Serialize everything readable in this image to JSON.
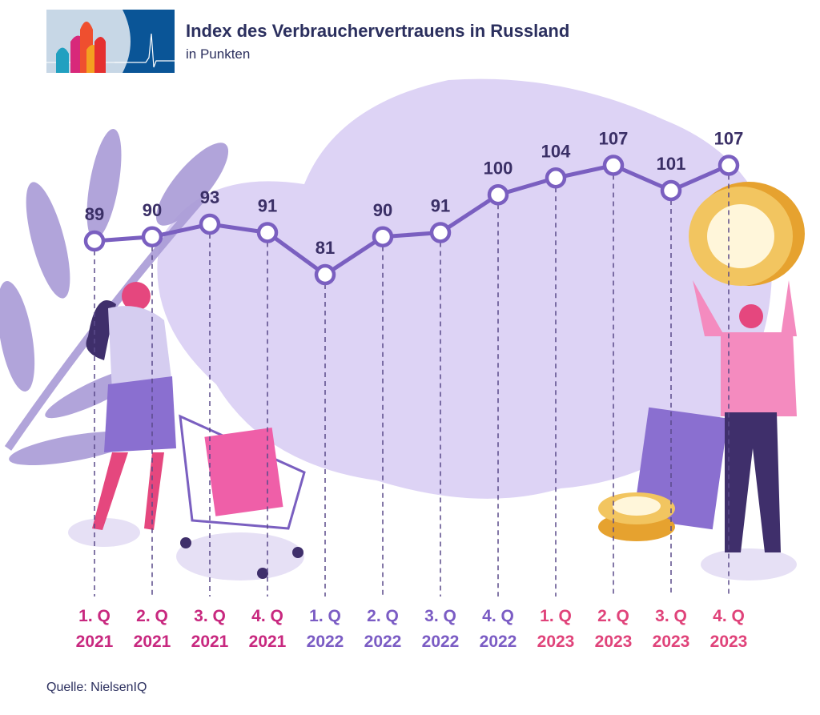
{
  "header": {
    "title": "Index des Verbrauchervertrauens in Russland",
    "subtitle": "in Punkten"
  },
  "footer": {
    "source": "Quelle: NielsenIQ"
  },
  "colors": {
    "line": "#7a5fc0",
    "year_2021": "#c8287f",
    "year_2022": "#7b5cc4",
    "year_2023": "#e0437a",
    "blob": "#ddd3f5",
    "value_text": "#3a2f66"
  },
  "chart_data": {
    "type": "line",
    "title": "Index des Verbrauchervertrauens in Russland",
    "subtitle": "in Punkten",
    "categories": [
      {
        "q": "1. Q",
        "y": "2021"
      },
      {
        "q": "2. Q",
        "y": "2021"
      },
      {
        "q": "3. Q",
        "y": "2021"
      },
      {
        "q": "4. Q",
        "y": "2021"
      },
      {
        "q": "1. Q",
        "y": "2022"
      },
      {
        "q": "2. Q",
        "y": "2022"
      },
      {
        "q": "3. Q",
        "y": "2022"
      },
      {
        "q": "4. Q",
        "y": "2022"
      },
      {
        "q": "1. Q",
        "y": "2023"
      },
      {
        "q": "2. Q",
        "y": "2023"
      },
      {
        "q": "3. Q",
        "y": "2023"
      },
      {
        "q": "4. Q",
        "y": "2023"
      }
    ],
    "values": [
      89,
      90,
      93,
      91,
      81,
      90,
      91,
      100,
      104,
      107,
      101,
      107
    ],
    "data_labels": [
      "89",
      "90",
      "93",
      "91",
      "81",
      "90",
      "91",
      "100",
      "104",
      "107",
      "101",
      "107"
    ],
    "grid": false,
    "legend": "none"
  }
}
